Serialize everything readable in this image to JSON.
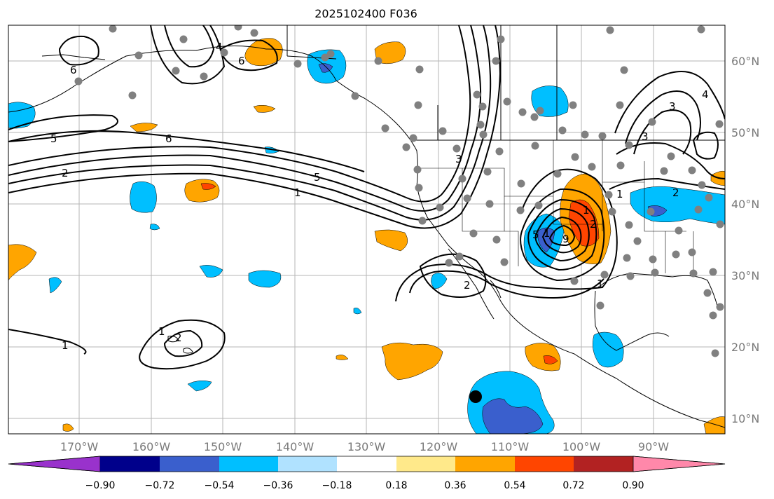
{
  "title": "2025102400 F036",
  "latitude_labels": [
    "60°N",
    "50°N",
    "40°N",
    "30°N",
    "20°N",
    "10°N"
  ],
  "longitude_labels": [
    "170°W",
    "160°W",
    "150°W",
    "140°W",
    "130°W",
    "120°W",
    "110°W",
    "100°W",
    "90°W"
  ],
  "colorbar": {
    "tick_labels": [
      "−0.90",
      "−0.72",
      "−0.54",
      "−0.36",
      "−0.18",
      "0.18",
      "0.36",
      "0.54",
      "0.72",
      "0.90"
    ],
    "colors": [
      "#9932cc",
      "#00008b",
      "#3a5fcd",
      "#00bfff",
      "#b0e2ff",
      "#ffffff",
      "#ffe98a",
      "#ffa500",
      "#ff4500",
      "#b22222",
      "#ff88aa"
    ]
  },
  "contour_labels": [
    "6",
    "5",
    "6",
    "2",
    "3",
    "1",
    "5",
    "1",
    "1",
    "2",
    "3",
    "4",
    "3",
    "2",
    "1",
    "9",
    "5",
    "2",
    "1",
    "2",
    "1",
    "1",
    "6",
    "4"
  ],
  "station_marker": "black-dot"
}
